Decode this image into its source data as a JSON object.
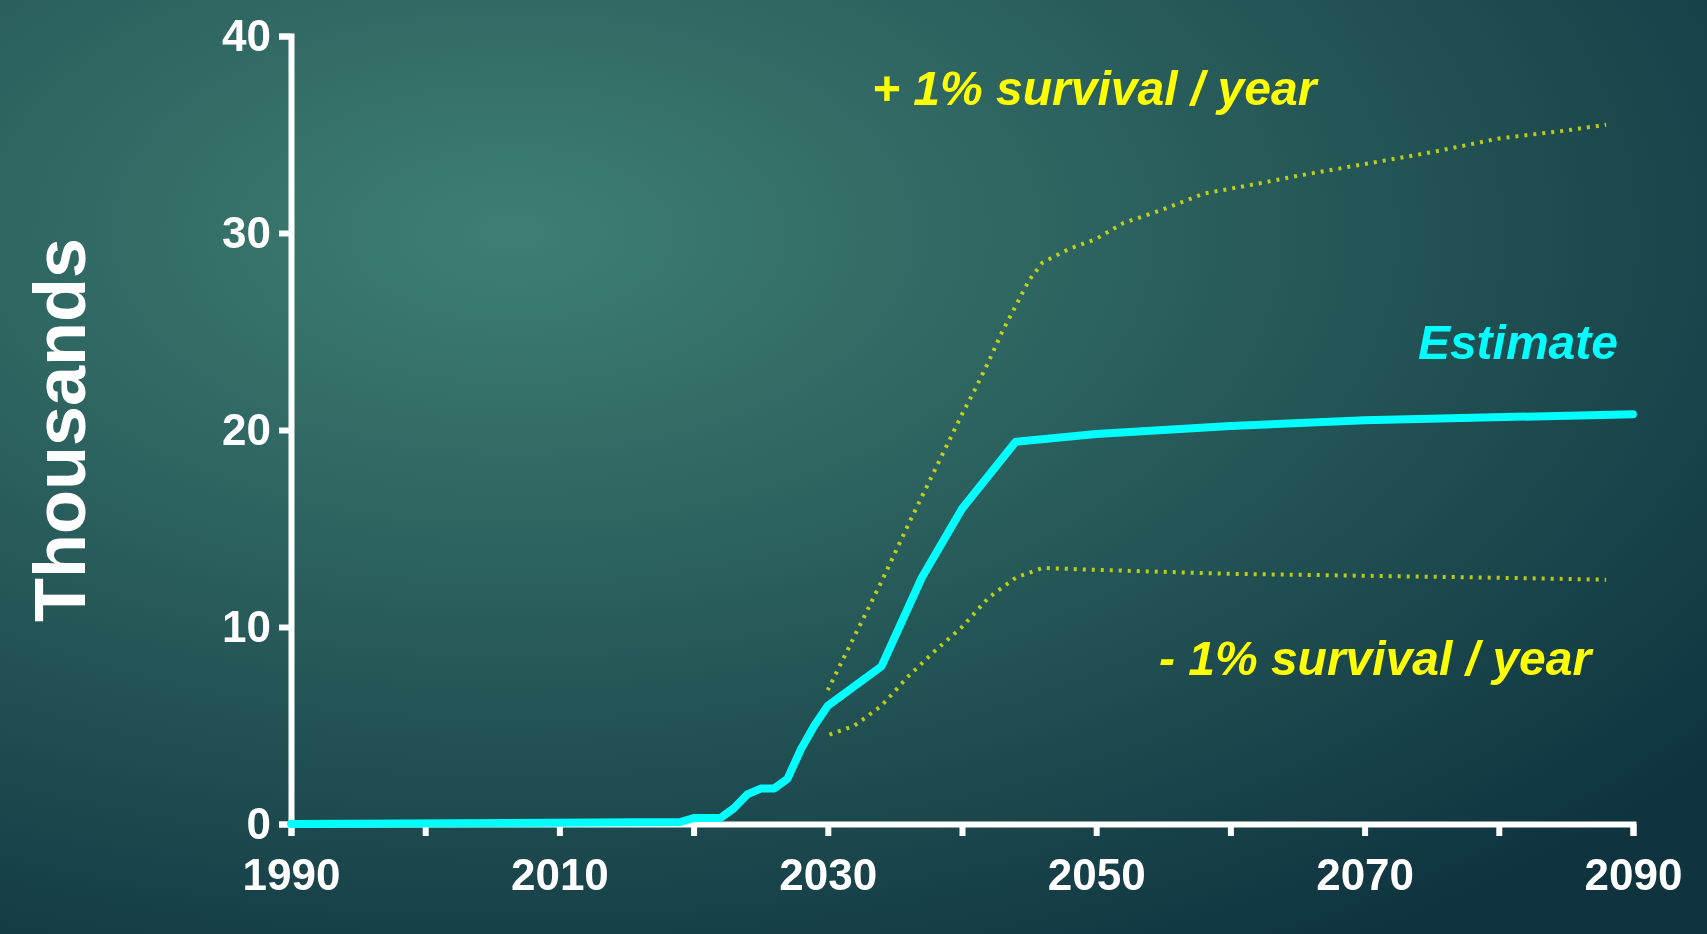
{
  "chart_data": {
    "type": "line",
    "ylabel": "Thousands",
    "xlim": [
      1990,
      2090
    ],
    "ylim": [
      0,
      40
    ],
    "xticks": [
      1990,
      {
        "value": 2000,
        "label": null
      },
      2010,
      {
        "value": 2020,
        "label": null
      },
      2030,
      {
        "value": 2040,
        "label": null
      },
      2050,
      {
        "value": 2060,
        "label": null
      },
      2070,
      {
        "value": 2080,
        "label": null
      },
      2090
    ],
    "yticks": [
      0,
      10,
      20,
      30,
      40
    ],
    "grid": false,
    "series": [
      {
        "name": "Estimate",
        "color": "#00ffff",
        "line_style": "solid",
        "x": [
          1990,
          2019,
          2020,
          2022,
          2023,
          2024,
          2025,
          2026,
          2027,
          2028,
          2029,
          2030,
          2034,
          2037,
          2040,
          2044,
          2050,
          2060,
          2070,
          2090
        ],
        "values": [
          0,
          0.1,
          0.3,
          0.3,
          0.8,
          1.5,
          1.8,
          1.8,
          2.3,
          3.8,
          5,
          6,
          8,
          12.5,
          16,
          19.4,
          19.8,
          20.2,
          20.5,
          20.8
        ]
      },
      {
        "name": "+ 1% survival / year",
        "color": "#ffff00",
        "line_style": "dotted",
        "x": [
          2030,
          2034,
          2036,
          2038,
          2039,
          2040,
          2041,
          2042,
          2043,
          2044,
          2045,
          2046,
          2048,
          2050,
          2052,
          2055,
          2058,
          2062,
          2065,
          2070,
          2075,
          2080,
          2085,
          2088
        ],
        "values": [
          6.8,
          12.3,
          15.2,
          18,
          19.4,
          20.8,
          22.1,
          23.5,
          25,
          26.3,
          27.6,
          28.5,
          29.2,
          29.7,
          30.5,
          31.2,
          32,
          32.5,
          32.9,
          33.5,
          34.1,
          34.8,
          35.2,
          35.5
        ]
      },
      {
        "name": "- 1% survival / year",
        "color": "#ffff00",
        "line_style": "dotted",
        "x": [
          2030,
          2032,
          2034,
          2036,
          2038,
          2040,
          2042,
          2044,
          2046,
          2050,
          2060,
          2070,
          2080,
          2088
        ],
        "values": [
          4.5,
          5,
          6,
          7.5,
          8.8,
          10,
          11.5,
          12.5,
          13,
          12.9,
          12.7,
          12.6,
          12.5,
          12.4
        ]
      }
    ]
  }
}
